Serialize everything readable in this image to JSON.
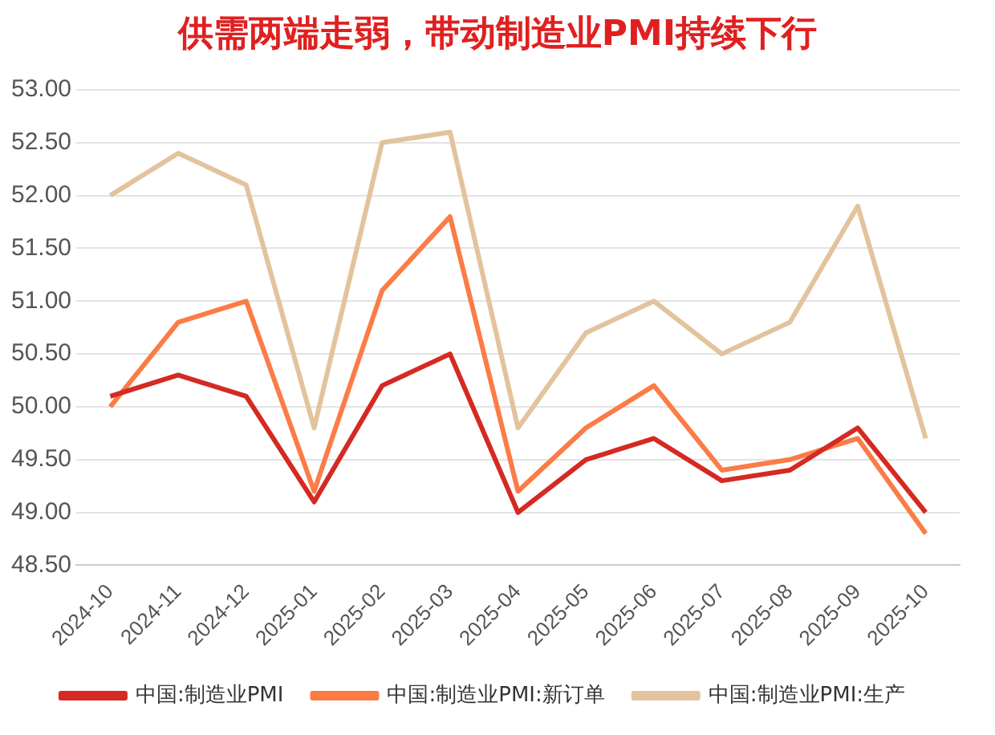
{
  "chart_data": {
    "type": "line",
    "title": "供需两端走弱，带动制造业PMI持续下行",
    "categories": [
      "2024-10",
      "2024-11",
      "2024-12",
      "2025-01",
      "2025-02",
      "2025-03",
      "2025-04",
      "2025-05",
      "2025-06",
      "2025-07",
      "2025-08",
      "2025-09",
      "2025-10"
    ],
    "series": [
      {
        "name": "中国:制造业PMI",
        "color": "#d42a23",
        "values": [
          50.1,
          50.3,
          50.1,
          49.1,
          50.2,
          50.5,
          49.0,
          49.5,
          49.7,
          49.3,
          49.4,
          49.8,
          49.0
        ]
      },
      {
        "name": "中国:制造业PMI:新订单",
        "color": "#fb7c46",
        "values": [
          50.0,
          50.8,
          51.0,
          49.2,
          51.1,
          51.8,
          49.2,
          49.8,
          50.2,
          49.4,
          49.5,
          49.7,
          48.8
        ]
      },
      {
        "name": "中国:制造业PMI:生产",
        "color": "#e3c39d",
        "values": [
          52.0,
          52.4,
          52.1,
          49.8,
          52.5,
          52.6,
          49.8,
          50.7,
          51.0,
          50.5,
          50.8,
          51.9,
          49.7
        ]
      }
    ],
    "ylim": [
      48.5,
      53
    ],
    "yticks": [
      {
        "value": 48.5,
        "label": "48.50"
      },
      {
        "value": 49,
        "label": "49.00"
      },
      {
        "value": 49.5,
        "label": "49.50"
      },
      {
        "value": 50,
        "label": "50.00"
      },
      {
        "value": 50.5,
        "label": "50.50"
      },
      {
        "value": 51,
        "label": "51.00"
      },
      {
        "value": 51.5,
        "label": "51.50"
      },
      {
        "value": 52,
        "label": "52.00"
      },
      {
        "value": 52.5,
        "label": "52.50"
      },
      {
        "value": 53,
        "label": "53.00"
      }
    ],
    "grid": "y",
    "legend": "bottom",
    "marker": "none",
    "line_style": "solid"
  }
}
